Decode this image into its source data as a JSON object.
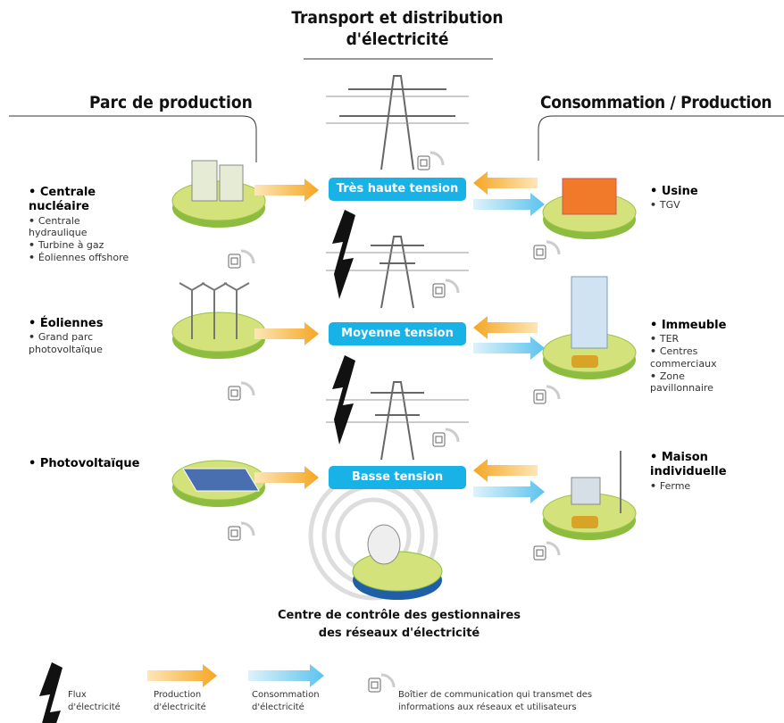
{
  "header": {
    "title": "Transport et distribution d'électricité"
  },
  "columns": {
    "production": "Parc de production",
    "consumption": "Consommation / Production"
  },
  "levels": [
    "Très haute tension",
    "Moyenne tension",
    "Basse tension"
  ],
  "production": [
    {
      "main": "Centrale nucléaire",
      "items": [
        "Centrale hydraulique",
        "Turbine à gaz",
        "Éoliennes offshore"
      ]
    },
    {
      "main": "Éoliennes",
      "items": [
        "Grand parc photovoltaïque"
      ]
    },
    {
      "main": "Photovoltaïque"
    }
  ],
  "consumption": [
    {
      "main": "Usine",
      "items": [
        "TGV"
      ]
    },
    {
      "main": "Immeuble",
      "items": [
        "TER",
        "Centres commerciaux",
        "Zone pavillonnaire"
      ]
    },
    {
      "main": "Maison individuelle",
      "items": [
        "Ferme"
      ]
    }
  ],
  "control_center": "Centre de contrôle des gestionnaires des réseaux d'électricité",
  "legend": [
    "Flux d'électricité",
    "Production d'électricité",
    "Consommation d'électricité",
    "Boîtier de communication qui transmet des informations aux réseaux et utilisateurs"
  ]
}
